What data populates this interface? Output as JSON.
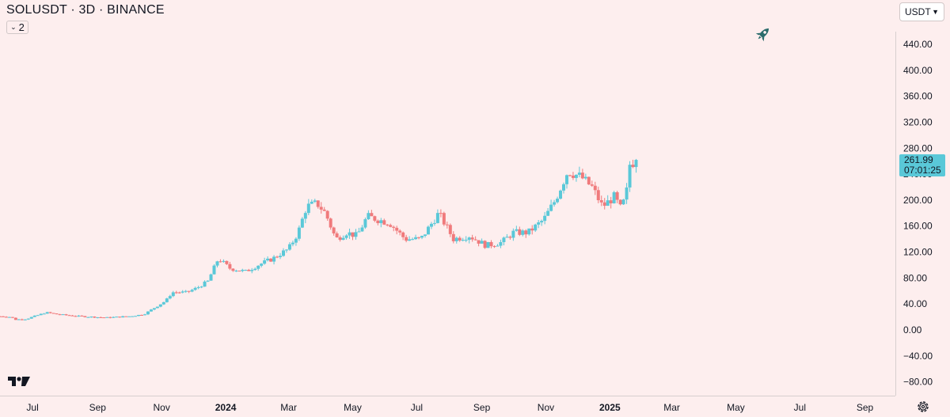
{
  "header": {
    "title": "SOLUSDT · 3D · BINANCE",
    "indicator_count": "2"
  },
  "currency_selector": {
    "value": "USDT"
  },
  "last_price": {
    "price": "261.99",
    "countdown": "07:01:25"
  },
  "colors": {
    "background": "#fdeeee",
    "up": "#5ac8d8",
    "down": "#f07a7c",
    "axis_text": "#131722",
    "rocket": "#2a6b6b"
  },
  "icons": [
    "rocket-icon",
    "tradingview-logo-icon",
    "settings-icon",
    "chevron-down-icon"
  ],
  "chart_data": {
    "type": "candlestick",
    "title": "SOLUSDT · 3D · BINANCE",
    "ylim": [
      -90,
      480
    ],
    "y_ticks": [
      -80,
      -40,
      0,
      40,
      80,
      120,
      160,
      200,
      240,
      280,
      320,
      360,
      400,
      440
    ],
    "y_tick_labels": [
      "−80.00",
      "−40.00",
      "0.00",
      "40.00",
      "80.00",
      "120.00",
      "160.00",
      "200.00",
      "240.00",
      "280.00",
      "320.00",
      "360.00",
      "400.00",
      "440.00"
    ],
    "x_range": [
      "2023-05-31",
      "2025-09-30"
    ],
    "x_ticks": [
      {
        "date": "2023-07-01",
        "label": "Jul",
        "bold": false
      },
      {
        "date": "2023-09-01",
        "label": "Sep",
        "bold": false
      },
      {
        "date": "2023-11-01",
        "label": "Nov",
        "bold": false
      },
      {
        "date": "2024-01-01",
        "label": "2024",
        "bold": true
      },
      {
        "date": "2024-03-01",
        "label": "Mar",
        "bold": false
      },
      {
        "date": "2024-05-01",
        "label": "May",
        "bold": false
      },
      {
        "date": "2024-07-01",
        "label": "Jul",
        "bold": false
      },
      {
        "date": "2024-09-01",
        "label": "Sep",
        "bold": false
      },
      {
        "date": "2024-11-01",
        "label": "Nov",
        "bold": false
      },
      {
        "date": "2025-01-01",
        "label": "2025",
        "bold": true
      },
      {
        "date": "2025-03-01",
        "label": "Mar",
        "bold": false
      },
      {
        "date": "2025-05-01",
        "label": "May",
        "bold": false
      },
      {
        "date": "2025-07-01",
        "label": "Jul",
        "bold": false
      },
      {
        "date": "2025-09-01",
        "label": "Sep",
        "bold": false
      }
    ],
    "path": [
      [
        "2023-05-31",
        21
      ],
      [
        "2023-06-10",
        20
      ],
      [
        "2023-06-15",
        16
      ],
      [
        "2023-06-25",
        17
      ],
      [
        "2023-07-14",
        27
      ],
      [
        "2023-07-25",
        24
      ],
      [
        "2023-08-15",
        21
      ],
      [
        "2023-09-10",
        19
      ],
      [
        "2023-10-01",
        21
      ],
      [
        "2023-10-15",
        24
      ],
      [
        "2023-10-25",
        34
      ],
      [
        "2023-11-05",
        45
      ],
      [
        "2023-11-11",
        58
      ],
      [
        "2023-11-25",
        58
      ],
      [
        "2023-12-05",
        65
      ],
      [
        "2023-12-15",
        75
      ],
      [
        "2023-12-25",
        110
      ],
      [
        "2024-01-05",
        95
      ],
      [
        "2024-01-20",
        90
      ],
      [
        "2024-02-01",
        100
      ],
      [
        "2024-02-15",
        110
      ],
      [
        "2024-03-01",
        125
      ],
      [
        "2024-03-10",
        150
      ],
      [
        "2024-03-18",
        190
      ],
      [
        "2024-03-28",
        195
      ],
      [
        "2024-04-05",
        180
      ],
      [
        "2024-04-15",
        140
      ],
      [
        "2024-04-25",
        150
      ],
      [
        "2024-05-05",
        145
      ],
      [
        "2024-05-15",
        175
      ],
      [
        "2024-05-25",
        170
      ],
      [
        "2024-06-05",
        165
      ],
      [
        "2024-06-20",
        140
      ],
      [
        "2024-07-05",
        140
      ],
      [
        "2024-07-22",
        180
      ],
      [
        "2024-08-05",
        140
      ],
      [
        "2024-08-20",
        145
      ],
      [
        "2024-09-05",
        130
      ],
      [
        "2024-09-20",
        135
      ],
      [
        "2024-10-01",
        150
      ],
      [
        "2024-10-15",
        150
      ],
      [
        "2024-10-30",
        170
      ],
      [
        "2024-11-10",
        200
      ],
      [
        "2024-11-22",
        245
      ],
      [
        "2024-12-05",
        235
      ],
      [
        "2024-12-15",
        220
      ],
      [
        "2024-12-25",
        190
      ],
      [
        "2025-01-05",
        205
      ],
      [
        "2025-01-12",
        185
      ],
      [
        "2025-01-18",
        220
      ],
      [
        "2025-01-20",
        255
      ],
      [
        "2025-01-26",
        262
      ]
    ]
  }
}
